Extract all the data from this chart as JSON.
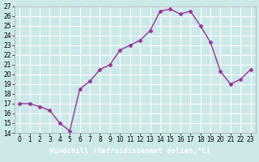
{
  "x": [
    0,
    1,
    2,
    3,
    4,
    5,
    6,
    7,
    8,
    9,
    10,
    11,
    12,
    13,
    14,
    15,
    16,
    17,
    18,
    19,
    20,
    21,
    22,
    23
  ],
  "y": [
    17,
    17,
    16.7,
    16.3,
    15,
    14.2,
    18.5,
    19.3,
    20.5,
    21,
    22.5,
    23,
    23.5,
    24.5,
    26.5,
    26.7,
    26.2,
    26.5,
    25,
    23.3,
    20.3,
    19,
    19.5,
    20.5
  ],
  "line_color": "#993399",
  "marker": "D",
  "marker_size": 2.5,
  "bg_color": "#cce8e8",
  "grid_color": "#ffffff",
  "xlabel": "Windchill (Refroidissement éolien,°C)",
  "xlim": [
    -0.5,
    23.5
  ],
  "ylim": [
    14,
    27
  ],
  "yticks": [
    14,
    15,
    16,
    17,
    18,
    19,
    20,
    21,
    22,
    23,
    24,
    25,
    26,
    27
  ],
  "xticks": [
    0,
    1,
    2,
    3,
    4,
    5,
    6,
    7,
    8,
    9,
    10,
    11,
    12,
    13,
    14,
    15,
    16,
    17,
    18,
    19,
    20,
    21,
    22,
    23
  ],
  "tick_label_fontsize": 5.5,
  "xlabel_fontsize": 6.5,
  "xlabel_color": "#ffffff",
  "xlabel_bg": "#663366",
  "spine_color": "#aaaaaa"
}
